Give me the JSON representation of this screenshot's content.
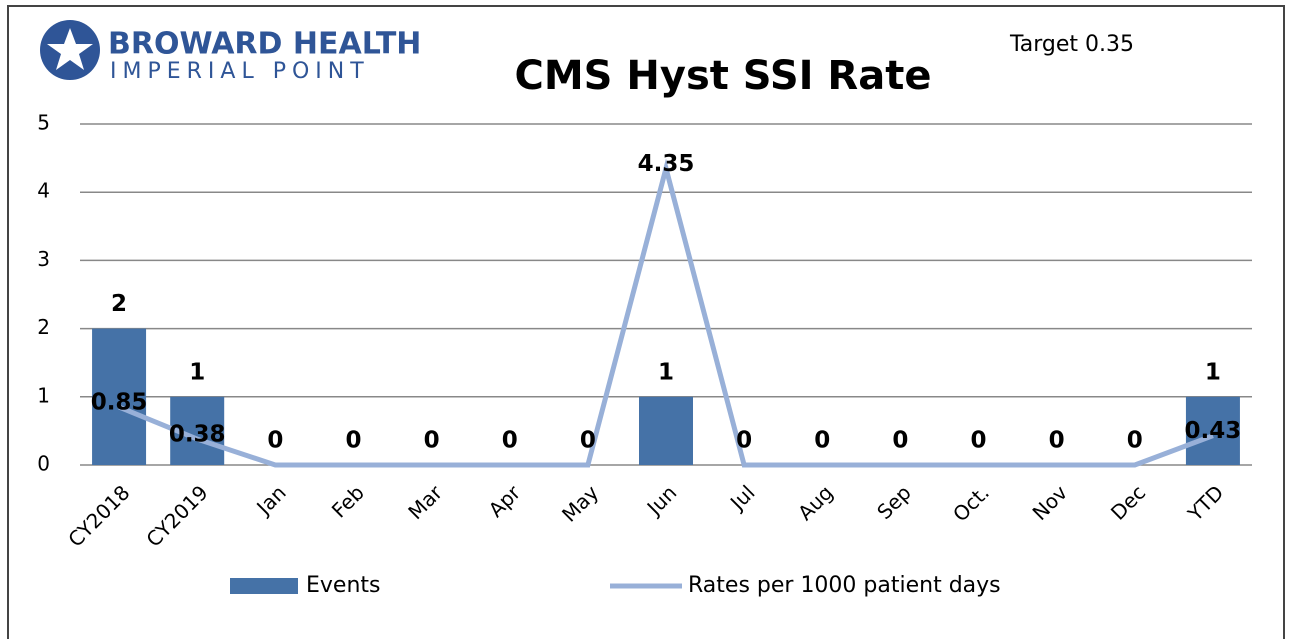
{
  "logo": {
    "line1": "BROWARD HEALTH",
    "line2": "IMPERIAL POINT"
  },
  "chart_data": {
    "type": "bar_line",
    "title": "CMS Hyst SSI Rate",
    "annotation": "Target 0.35",
    "categories": [
      "CY2018",
      "CY2019",
      "Jan",
      "Feb",
      "Mar",
      "Apr",
      "May",
      "Jun",
      "Jul",
      "Aug",
      "Sep",
      "Oct.",
      "Nov",
      "Dec",
      "YTD"
    ],
    "series": [
      {
        "name": "Events",
        "type": "bar",
        "color": "#4572a7",
        "values": [
          2,
          1,
          0,
          0,
          0,
          0,
          0,
          1,
          0,
          0,
          0,
          0,
          0,
          0,
          1
        ]
      },
      {
        "name": "Rates per 1000 patient days",
        "type": "line",
        "color": "#98b0d8",
        "values": [
          0.85,
          0.38,
          0,
          0,
          0,
          0,
          0,
          4.35,
          0,
          0,
          0,
          0,
          0,
          0,
          0.43
        ],
        "value_labels": [
          "0.85",
          "0.38",
          null,
          null,
          null,
          null,
          null,
          "4.35",
          null,
          null,
          null,
          null,
          null,
          null,
          "0.43"
        ]
      }
    ],
    "ylim": [
      0,
      5
    ],
    "yticks": [
      0,
      1,
      2,
      3,
      4,
      5
    ],
    "grid": true,
    "legend": "bottom"
  }
}
